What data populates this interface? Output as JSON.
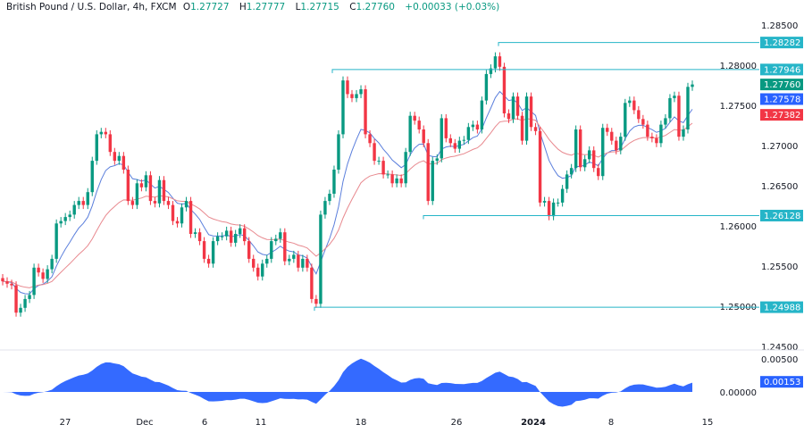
{
  "header": {
    "symbol": "British Pound / U.S. Dollar, 4h, FXCM",
    "open_label": "O",
    "open": "1.27727",
    "high_label": "H",
    "high": "1.27777",
    "low_label": "L",
    "low": "1.27715",
    "close_label": "C",
    "close": "1.27760",
    "change": "+0.00033 (+0.03%)"
  },
  "chart_data": {
    "type": "candlestick",
    "interval": "4h",
    "colors": {
      "up": "#089981",
      "down": "#f23645",
      "fast_ma": "#5b7fdc",
      "slow_ma": "#e8898f",
      "level": "#26b5c8",
      "oscillator": "#2962ff"
    },
    "closes": [
      1.2531,
      1.2528,
      1.2526,
      1.2492,
      1.2498,
      1.2509,
      1.2514,
      1.2548,
      1.2542,
      1.2534,
      1.2546,
      1.2559,
      1.2603,
      1.2606,
      1.2611,
      1.2614,
      1.2626,
      1.2631,
      1.2626,
      1.2642,
      1.2681,
      1.2714,
      1.2717,
      1.2714,
      1.2692,
      1.2681,
      1.2687,
      1.267,
      1.2631,
      1.2626,
      1.2653,
      1.2648,
      1.2663,
      1.2631,
      1.2628,
      1.2657,
      1.2631,
      1.2626,
      1.2606,
      1.2603,
      1.2623,
      1.2631,
      1.259,
      1.2592,
      1.2581,
      1.2559,
      1.2553,
      1.2581,
      1.2587,
      1.2587,
      1.2594,
      1.2579,
      1.259,
      1.2597,
      1.2581,
      1.2559,
      1.2548,
      1.2537,
      1.2553,
      1.2559,
      1.2581,
      1.2584,
      1.2592,
      1.2556,
      1.2559,
      1.2564,
      1.2548,
      1.2559,
      1.2548,
      1.2509,
      1.2503,
      1.2614,
      1.2631,
      1.264,
      1.267,
      1.2714,
      1.2781,
      1.2764,
      1.2759,
      1.2764,
      1.277,
      1.2714,
      1.2703,
      1.2681,
      1.2681,
      1.2664,
      1.2664,
      1.2653,
      1.2659,
      1.2653,
      1.2692,
      1.2737,
      1.2731,
      1.272,
      1.2703,
      1.2631,
      1.2681,
      1.2684,
      1.2734,
      1.2709,
      1.2703,
      1.2696,
      1.2706,
      1.2707,
      1.2723,
      1.2726,
      1.272,
      1.2756,
      1.2789,
      1.2796,
      1.2811,
      1.2798,
      1.274,
      1.2733,
      1.2761,
      1.2737,
      1.2706,
      1.2761,
      1.2723,
      1.2718,
      1.2629,
      1.2631,
      1.2612,
      1.2629,
      1.2629,
      1.2646,
      1.2664,
      1.2672,
      1.272,
      1.2673,
      1.2683,
      1.2694,
      1.2672,
      1.2662,
      1.2722,
      1.2717,
      1.2706,
      1.2694,
      1.2711,
      1.2753,
      1.2756,
      1.2744,
      1.2733,
      1.2726,
      1.2711,
      1.2709,
      1.2703,
      1.2726,
      1.2734,
      1.2759,
      1.2762,
      1.2711,
      1.272,
      1.2773,
      1.2776
    ],
    "levels": [
      "1.28282",
      "1.27946",
      "1.26128",
      "1.24988"
    ],
    "price_labels": {
      "last": "1.27760",
      "fast_ma": "1.27578",
      "slow_ma": "1.27382"
    },
    "y_ticks": [
      "1.28500",
      "1.28000",
      "1.27500",
      "1.27000",
      "1.26500",
      "1.26000",
      "1.25500",
      "1.25000",
      "1.24500"
    ],
    "ylim": [
      1.245,
      1.285
    ],
    "x_ticks": [
      "27",
      "Dec",
      "6",
      "11",
      "18",
      "26",
      "2024",
      "8",
      "15"
    ],
    "oscillator": {
      "ticks": [
        "0.00500",
        "0.00000"
      ],
      "last": "0.00153"
    }
  }
}
